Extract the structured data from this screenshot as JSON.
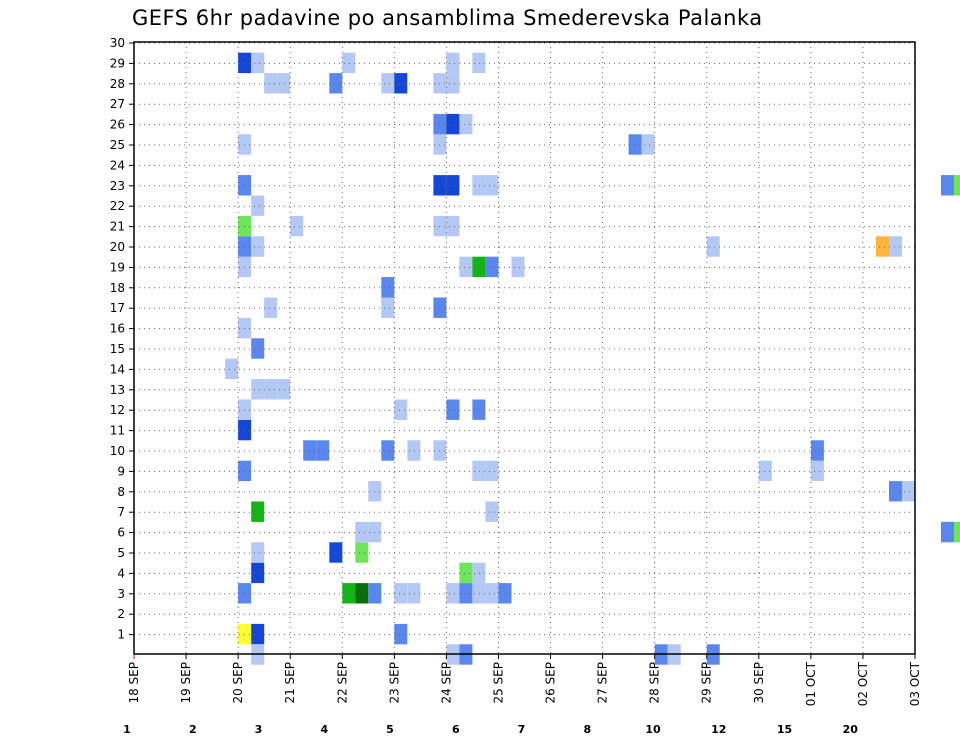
{
  "chart_data": {
    "type": "heatmap",
    "title": "GEFS 6hr padavine po ansamblima Smederevska Palanka",
    "xlabel": "",
    "ylabel": "",
    "x_tick_labels": [
      "18 SEP",
      "19 SEP",
      "20 SEP",
      "21 SEP",
      "22 SEP",
      "23 SEP",
      "24 SEP",
      "25 SEP",
      "26 SEP",
      "27 SEP",
      "28 SEP",
      "29 SEP",
      "30 SEP",
      "01 OCT",
      "02 OCT",
      "03 OCT"
    ],
    "y_tick_labels": [
      "1",
      "2",
      "3",
      "4",
      "5",
      "6",
      "7",
      "8",
      "9",
      "10",
      "11",
      "12",
      "13",
      "14",
      "15",
      "16",
      "17",
      "18",
      "19",
      "20",
      "21",
      "22",
      "23",
      "24",
      "25",
      "26",
      "27",
      "28",
      "29",
      "30"
    ],
    "ylim": [
      0,
      30
    ],
    "grid": true,
    "colorbar": {
      "labels": [
        "1",
        "2",
        "3",
        "4",
        "5",
        "6",
        "7",
        "8",
        "10",
        "12",
        "15",
        "20"
      ],
      "colors": [
        "#b4c8f5",
        "#5a87ee",
        "#1446d7",
        "#6ee65a",
        "#14b414",
        "#0a6e0a",
        "#ffff32",
        "#ffb43c",
        "#f57814",
        "#e63c14",
        "#b4140a",
        "#6e0a0a"
      ]
    },
    "cells": [
      [
        "09-20 00",
        1,
        "#ffff32"
      ],
      [
        "09-20 06",
        1,
        "#1446d7"
      ],
      [
        "09-23 00",
        1,
        "#5a87ee"
      ],
      [
        "09-20 00",
        3,
        "#5a87ee"
      ],
      [
        "09-22 00",
        3,
        "#14b414"
      ],
      [
        "09-22 06",
        3,
        "#0a6e0a"
      ],
      [
        "09-22 12",
        3,
        "#5a87ee"
      ],
      [
        "09-23 00",
        3,
        "#b4c8f5"
      ],
      [
        "09-23 06",
        3,
        "#b4c8f5"
      ],
      [
        "09-24 00",
        3,
        "#b4c8f5"
      ],
      [
        "09-24 06",
        3,
        "#5a87ee"
      ],
      [
        "09-24 12",
        3,
        "#b4c8f5"
      ],
      [
        "09-24 18",
        3,
        "#b4c8f5"
      ],
      [
        "09-25 00",
        3,
        "#5a87ee"
      ],
      [
        "09-20 06",
        4,
        "#1446d7"
      ],
      [
        "09-24 06",
        4,
        "#6ee65a"
      ],
      [
        "09-24 12",
        4,
        "#b4c8f5"
      ],
      [
        "09-20 06",
        5,
        "#b4c8f5"
      ],
      [
        "09-21 18",
        5,
        "#1446d7"
      ],
      [
        "09-22 06",
        5,
        "#6ee65a"
      ],
      [
        "09-22 06",
        6,
        "#b4c8f5"
      ],
      [
        "09-22 12",
        6,
        "#b4c8f5"
      ],
      [
        "10-03 12",
        6,
        "#5a87ee"
      ],
      [
        "10-03 18",
        6,
        "#6ee65a"
      ],
      [
        "09-20 06",
        7,
        "#14b414"
      ],
      [
        "09-24 18",
        7,
        "#b4c8f5"
      ],
      [
        "09-22 12",
        8,
        "#b4c8f5"
      ],
      [
        "10-02 12",
        8,
        "#5a87ee"
      ],
      [
        "10-02 18",
        8,
        "#b4c8f5"
      ],
      [
        "09-20 00",
        9,
        "#5a87ee"
      ],
      [
        "09-24 12",
        9,
        "#b4c8f5"
      ],
      [
        "09-24 18",
        9,
        "#b4c8f5"
      ],
      [
        "09-30 00",
        9,
        "#b4c8f5"
      ],
      [
        "10-01 00",
        9,
        "#b4c8f5"
      ],
      [
        "09-21 06",
        10,
        "#5a87ee"
      ],
      [
        "09-21 12",
        10,
        "#5a87ee"
      ],
      [
        "09-22 18",
        10,
        "#5a87ee"
      ],
      [
        "09-23 06",
        10,
        "#b4c8f5"
      ],
      [
        "09-23 18",
        10,
        "#b4c8f5"
      ],
      [
        "10-01 00",
        10,
        "#5a87ee"
      ],
      [
        "09-20 00",
        11,
        "#1446d7"
      ],
      [
        "09-20 00",
        12,
        "#b4c8f5"
      ],
      [
        "09-23 00",
        12,
        "#b4c8f5"
      ],
      [
        "09-24 00",
        12,
        "#5a87ee"
      ],
      [
        "09-24 12",
        12,
        "#5a87ee"
      ],
      [
        "09-20 06",
        13,
        "#b4c8f5"
      ],
      [
        "09-20 12",
        13,
        "#b4c8f5"
      ],
      [
        "09-20 18",
        13,
        "#b4c8f5"
      ],
      [
        "09-19 18",
        14,
        "#b4c8f5"
      ],
      [
        "09-20 06",
        15,
        "#5a87ee"
      ],
      [
        "09-20 00",
        16,
        "#b4c8f5"
      ],
      [
        "09-20 12",
        17,
        "#b4c8f5"
      ],
      [
        "09-22 18",
        17,
        "#b4c8f5"
      ],
      [
        "09-23 18",
        17,
        "#5a87ee"
      ],
      [
        "09-22 18",
        18,
        "#5a87ee"
      ],
      [
        "09-20 00",
        19,
        "#b4c8f5"
      ],
      [
        "09-24 06",
        19,
        "#b4c8f5"
      ],
      [
        "09-24 12",
        19,
        "#14b414"
      ],
      [
        "09-24 18",
        19,
        "#5a87ee"
      ],
      [
        "09-25 06",
        19,
        "#b4c8f5"
      ],
      [
        "09-20 00",
        20,
        "#5a87ee"
      ],
      [
        "09-20 06",
        20,
        "#b4c8f5"
      ],
      [
        "09-29 00",
        20,
        "#b4c8f5"
      ],
      [
        "10-02 06",
        20,
        "#ffb43c"
      ],
      [
        "10-02 12",
        20,
        "#b4c8f5"
      ],
      [
        "09-20 00",
        21,
        "#6ee65a"
      ],
      [
        "09-21 00",
        21,
        "#b4c8f5"
      ],
      [
        "09-23 18",
        21,
        "#b4c8f5"
      ],
      [
        "09-24 00",
        21,
        "#b4c8f5"
      ],
      [
        "09-20 06",
        22,
        "#b4c8f5"
      ],
      [
        "09-20 00",
        23,
        "#5a87ee"
      ],
      [
        "09-23 18",
        23,
        "#1446d7"
      ],
      [
        "09-24 00",
        23,
        "#1446d7"
      ],
      [
        "09-24 12",
        23,
        "#b4c8f5"
      ],
      [
        "09-24 18",
        23,
        "#b4c8f5"
      ],
      [
        "10-03 12",
        23,
        "#5a87ee"
      ],
      [
        "10-03 18",
        23,
        "#6ee65a"
      ],
      [
        "09-20 00",
        25,
        "#b4c8f5"
      ],
      [
        "09-23 18",
        25,
        "#b4c8f5"
      ],
      [
        "09-27 12",
        25,
        "#5a87ee"
      ],
      [
        "09-27 18",
        25,
        "#b4c8f5"
      ],
      [
        "09-23 18",
        26,
        "#5a87ee"
      ],
      [
        "09-24 00",
        26,
        "#1446d7"
      ],
      [
        "09-24 06",
        26,
        "#b4c8f5"
      ],
      [
        "09-20 12",
        28,
        "#b4c8f5"
      ],
      [
        "09-20 18",
        28,
        "#b4c8f5"
      ],
      [
        "09-21 18",
        28,
        "#5a87ee"
      ],
      [
        "09-22 18",
        28,
        "#b4c8f5"
      ],
      [
        "09-23 00",
        28,
        "#1446d7"
      ],
      [
        "09-23 18",
        28,
        "#b4c8f5"
      ],
      [
        "09-24 00",
        28,
        "#b4c8f5"
      ],
      [
        "09-20 00",
        29,
        "#1446d7"
      ],
      [
        "09-20 06",
        29,
        "#b4c8f5"
      ],
      [
        "09-22 00",
        29,
        "#b4c8f5"
      ],
      [
        "09-24 00",
        29,
        "#b4c8f5"
      ],
      [
        "09-24 12",
        29,
        "#b4c8f5"
      ],
      [
        "09-20 06",
        0,
        "#b4c8f5"
      ],
      [
        "09-24 00",
        0,
        "#b4c8f5"
      ],
      [
        "09-24 06",
        0,
        "#5a87ee"
      ],
      [
        "09-28 00",
        0,
        "#5a87ee"
      ],
      [
        "09-28 06",
        0,
        "#b4c8f5"
      ],
      [
        "09-29 00",
        0,
        "#5a87ee"
      ]
    ]
  }
}
